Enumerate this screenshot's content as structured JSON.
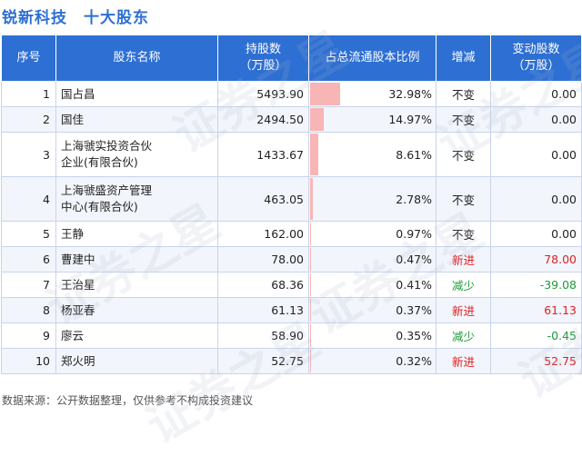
{
  "header": {
    "company": "锐新科技",
    "subtitle": "十大股东"
  },
  "columns": {
    "index": "序号",
    "name": "股东名称",
    "shares": "持股数\n（万股）",
    "ratio": "占总流通股本比例",
    "change_type": "增减",
    "change_amount": "变动股数\n（万股）"
  },
  "colors": {
    "header_bg": "#2e6fd3",
    "bar": "#f8b5b5",
    "increase": "#e02020",
    "decrease": "#1d9a3a"
  },
  "chart_data": {
    "type": "table",
    "title": "锐新科技 十大股东",
    "rows": [
      {
        "index": "1",
        "name": [
          "国占昌"
        ],
        "shares": "5493.90",
        "ratio": "32.98%",
        "ratio_value": 32.98,
        "change_type": "不变",
        "change_amount": "0.00",
        "trend": "same"
      },
      {
        "index": "2",
        "name": [
          "国佳"
        ],
        "shares": "2494.50",
        "ratio": "14.97%",
        "ratio_value": 14.97,
        "change_type": "不变",
        "change_amount": "0.00",
        "trend": "same"
      },
      {
        "index": "3",
        "name": [
          "上海虢实投资合伙",
          "企业(有限合伙)"
        ],
        "shares": "1433.67",
        "ratio": "8.61%",
        "ratio_value": 8.61,
        "change_type": "不变",
        "change_amount": "0.00",
        "trend": "same"
      },
      {
        "index": "4",
        "name": [
          "上海虢盛资产管理",
          "中心(有限合伙)"
        ],
        "shares": "463.05",
        "ratio": "2.78%",
        "ratio_value": 2.78,
        "change_type": "不变",
        "change_amount": "0.00",
        "trend": "same"
      },
      {
        "index": "5",
        "name": [
          "王静"
        ],
        "shares": "162.00",
        "ratio": "0.97%",
        "ratio_value": 0.97,
        "change_type": "不变",
        "change_amount": "0.00",
        "trend": "same"
      },
      {
        "index": "6",
        "name": [
          "曹建中"
        ],
        "shares": "78.00",
        "ratio": "0.47%",
        "ratio_value": 0.47,
        "change_type": "新进",
        "change_amount": "78.00",
        "trend": "up"
      },
      {
        "index": "7",
        "name": [
          "王治星"
        ],
        "shares": "68.36",
        "ratio": "0.41%",
        "ratio_value": 0.41,
        "change_type": "减少",
        "change_amount": "-39.08",
        "trend": "down"
      },
      {
        "index": "8",
        "name": [
          "杨亚春"
        ],
        "shares": "61.13",
        "ratio": "0.37%",
        "ratio_value": 0.37,
        "change_type": "新进",
        "change_amount": "61.13",
        "trend": "up"
      },
      {
        "index": "9",
        "name": [
          "廖云"
        ],
        "shares": "58.90",
        "ratio": "0.35%",
        "ratio_value": 0.35,
        "change_type": "减少",
        "change_amount": "-0.45",
        "trend": "down"
      },
      {
        "index": "10",
        "name": [
          "郑火明"
        ],
        "shares": "52.75",
        "ratio": "0.32%",
        "ratio_value": 0.32,
        "change_type": "新进",
        "change_amount": "52.75",
        "trend": "up"
      }
    ]
  },
  "footer": {
    "source": "数据来源：公开数据整理，仅供参考不构成投资建议"
  },
  "watermark": {
    "text": "证券之星"
  }
}
